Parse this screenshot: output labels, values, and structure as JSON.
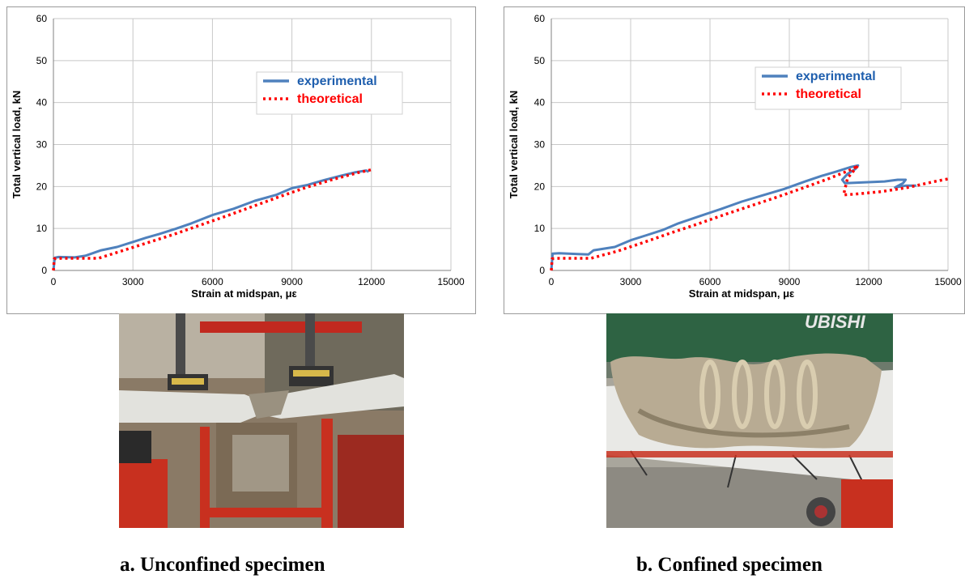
{
  "chart_data": [
    {
      "type": "line",
      "xlabel": "Strain at midspan, με",
      "ylabel": "Total vertical load, kN",
      "xlim": [
        0,
        15000
      ],
      "ylim": [
        0,
        60
      ],
      "xticks": [
        "0",
        "3000",
        "6000",
        "9000",
        "12000",
        "15000"
      ],
      "yticks": [
        "0",
        "10",
        "20",
        "30",
        "40",
        "50",
        "60"
      ],
      "grid": true,
      "legend_position": "upper-right",
      "series": [
        {
          "name": "experimental",
          "color": "#4f81bd",
          "style": "solid",
          "points": [
            [
              0,
              0
            ],
            [
              50,
              3.0
            ],
            [
              200,
              3.2
            ],
            [
              800,
              3.1
            ],
            [
              1200,
              3.5
            ],
            [
              1800,
              4.8
            ],
            [
              2400,
              5.6
            ],
            [
              3000,
              6.8
            ],
            [
              3500,
              7.8
            ],
            [
              4000,
              8.7
            ],
            [
              4600,
              9.9
            ],
            [
              5200,
              11.2
            ],
            [
              6000,
              13.2
            ],
            [
              6800,
              14.7
            ],
            [
              7600,
              16.6
            ],
            [
              8400,
              18.0
            ],
            [
              9000,
              19.6
            ],
            [
              9600,
              20.4
            ],
            [
              10200,
              21.5
            ],
            [
              10800,
              22.5
            ],
            [
              11400,
              23.4
            ],
            [
              11800,
              23.8
            ],
            [
              11900,
              23.5
            ]
          ]
        },
        {
          "name": "theoretical",
          "color": "#ff0000",
          "style": "dotted",
          "points": [
            [
              0,
              0
            ],
            [
              30,
              2.8
            ],
            [
              300,
              2.9
            ],
            [
              1700,
              2.9
            ],
            [
              2500,
              4.5
            ],
            [
              3500,
              6.5
            ],
            [
              4500,
              8.5
            ],
            [
              5500,
              10.7
            ],
            [
              6500,
              12.9
            ],
            [
              7500,
              15.2
            ],
            [
              8500,
              17.5
            ],
            [
              9500,
              19.7
            ],
            [
              10500,
              21.6
            ],
            [
              11500,
              23.3
            ],
            [
              12000,
              24.0
            ]
          ]
        }
      ]
    },
    {
      "type": "line",
      "xlabel": "Strain at midspan, με",
      "ylabel": "Total vertical load, kN",
      "xlim": [
        0,
        15000
      ],
      "ylim": [
        0,
        60
      ],
      "xticks": [
        "0",
        "3000",
        "6000",
        "9000",
        "12000",
        "15000"
      ],
      "yticks": [
        "0",
        "10",
        "20",
        "30",
        "40",
        "50",
        "60"
      ],
      "grid": true,
      "legend_position": "upper-right",
      "series": [
        {
          "name": "experimental",
          "color": "#4f81bd",
          "style": "solid",
          "points": [
            [
              0,
              0
            ],
            [
              50,
              4.0
            ],
            [
              300,
              4.1
            ],
            [
              1000,
              3.9
            ],
            [
              1400,
              3.8
            ],
            [
              1600,
              4.8
            ],
            [
              2400,
              5.6
            ],
            [
              3000,
              7.2
            ],
            [
              3600,
              8.4
            ],
            [
              4200,
              9.6
            ],
            [
              4800,
              11.2
            ],
            [
              5600,
              12.9
            ],
            [
              6400,
              14.6
            ],
            [
              7200,
              16.4
            ],
            [
              8000,
              17.9
            ],
            [
              8800,
              19.4
            ],
            [
              9600,
              21.2
            ],
            [
              10200,
              22.5
            ],
            [
              10800,
              23.6
            ],
            [
              11300,
              24.6
            ],
            [
              11600,
              25.0
            ],
            [
              11500,
              24.2
            ],
            [
              11200,
              23.0
            ],
            [
              11000,
              21.6
            ],
            [
              11100,
              20.8
            ],
            [
              11800,
              21.0
            ],
            [
              12600,
              21.2
            ],
            [
              13100,
              21.6
            ],
            [
              13400,
              21.6
            ],
            [
              13300,
              20.8
            ],
            [
              13000,
              19.8
            ],
            [
              13400,
              20.2
            ],
            [
              13800,
              20.2
            ]
          ]
        },
        {
          "name": "theoretical",
          "color": "#ff0000",
          "style": "dotted",
          "points": [
            [
              0,
              0
            ],
            [
              30,
              2.8
            ],
            [
              300,
              2.9
            ],
            [
              1500,
              2.9
            ],
            [
              2500,
              4.6
            ],
            [
              3500,
              6.7
            ],
            [
              4500,
              8.9
            ],
            [
              5500,
              11.0
            ],
            [
              6500,
              13.2
            ],
            [
              7500,
              15.3
            ],
            [
              8500,
              17.4
            ],
            [
              9500,
              19.6
            ],
            [
              10500,
              21.9
            ],
            [
              11400,
              24.2
            ],
            [
              11600,
              25.0
            ],
            [
              11200,
              22.0
            ],
            [
              11050,
              18.0
            ],
            [
              11500,
              18.2
            ],
            [
              12500,
              18.8
            ],
            [
              13500,
              19.8
            ],
            [
              14500,
              21.2
            ],
            [
              15000,
              21.8
            ]
          ]
        }
      ]
    }
  ],
  "captions": {
    "left": "a. Unconfined specimen",
    "right": "b. Confined specimen"
  },
  "photos": {
    "right_sign_text": "UBISHI"
  }
}
